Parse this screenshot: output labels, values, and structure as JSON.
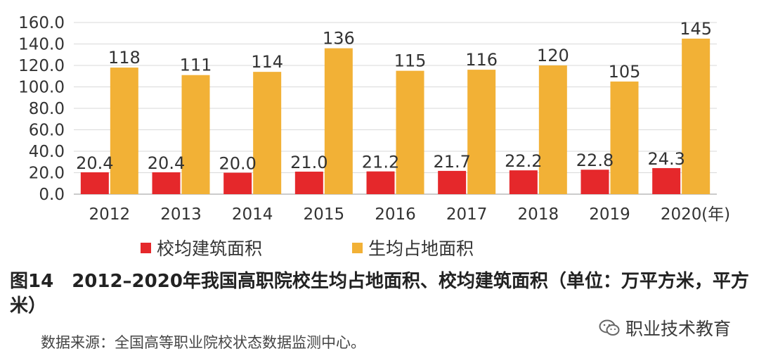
{
  "chart_data": {
    "type": "bar",
    "categories": [
      "2012",
      "2013",
      "2014",
      "2015",
      "2016",
      "2017",
      "2018",
      "2019",
      "2020"
    ],
    "x_unit_suffix": "(年)",
    "ylim": [
      0,
      160
    ],
    "yticks": [
      "0.0",
      "20.0",
      "40.0",
      "60.0",
      "80.0",
      "100.0",
      "120.0",
      "140.0",
      "160.0"
    ],
    "grid": true,
    "legend_position": "bottom",
    "series": [
      {
        "name": "校均建筑面积",
        "color": "#e5282b",
        "values": [
          20.4,
          20.4,
          20.0,
          21.0,
          21.2,
          21.7,
          22.2,
          22.8,
          24.3
        ],
        "labels": [
          "20.4",
          "20.4",
          "20.0",
          "21.0",
          "21.2",
          "21.7",
          "22.2",
          "22.8",
          "24.3"
        ]
      },
      {
        "name": "生均占地面积",
        "color": "#f2b136",
        "values": [
          118,
          111,
          114,
          136,
          115,
          116,
          120,
          105,
          145
        ],
        "labels": [
          "118",
          "111",
          "114",
          "136",
          "115",
          "116",
          "120",
          "105",
          "145"
        ]
      }
    ]
  },
  "legend": {
    "items": [
      "校均建筑面积",
      "生均占地面积"
    ]
  },
  "caption": {
    "number": "图14",
    "text": "2012–2020年我国高职院校生均占地面积、校均建筑面积（单位：万平方米，平方米）"
  },
  "source": "数据来源：全国高等职业院校状态数据监测中心。",
  "watermark": {
    "text": "职业技术教育",
    "icon": "wechat-icon"
  }
}
